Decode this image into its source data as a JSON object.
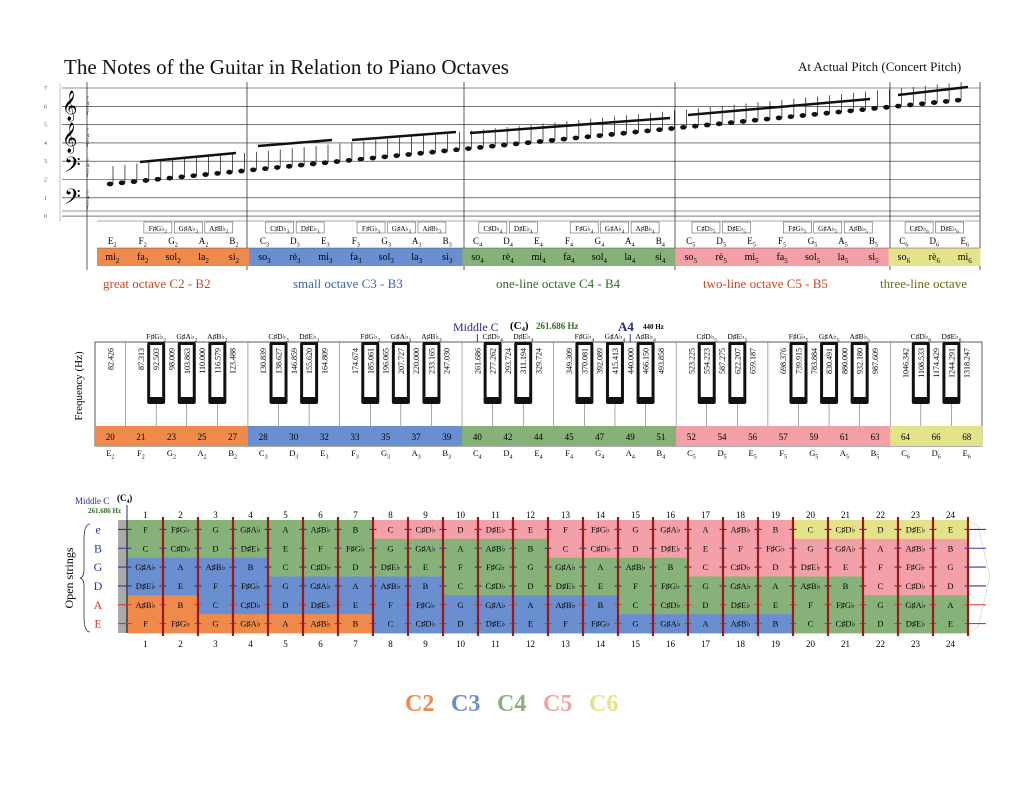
{
  "title": "The Notes of the Guitar in Relation to Piano Octaves",
  "subtitle": "At Actual Pitch (Concert Pitch)",
  "colors": {
    "C2": "#f08a4b",
    "C3": "#6a8fd1",
    "C4": "#86b27a",
    "C5": "#f4a0a8",
    "C6": "#e4e38a"
  },
  "staff": {
    "y_numbers": [
      "7",
      "6",
      "5",
      "4",
      "3",
      "2",
      "1",
      "0"
    ],
    "clef_fret_label": "FRET"
  },
  "top_table": {
    "sharps": [
      "F♯G♭2",
      "G♯A♭2",
      "A♯B♭2",
      "C♯D♭3",
      "D♯E♭3",
      "F♯G♭3",
      "G♯A♭3",
      "A♯B♭3",
      "C♯D♭4",
      "D♯E♭4",
      "F♯G♭4",
      "G♯A♭4",
      "A♯B♭4",
      "C♯D♭5",
      "D♯E♭5",
      "F♯G♭5",
      "G♯A♭5",
      "A♯B♭5",
      "C♯D♭6",
      "D♯E♭6"
    ],
    "naturals": [
      "E2",
      "F2",
      "G2",
      "A2",
      "B2",
      "C3",
      "D3",
      "E3",
      "F3",
      "G3",
      "A3",
      "B3",
      "C4",
      "D4",
      "E4",
      "F4",
      "G4",
      "A4",
      "B4",
      "C5",
      "D5",
      "E5",
      "F5",
      "G5",
      "A5",
      "B5",
      "C6",
      "D6",
      "E6"
    ],
    "solfege": [
      "mi2",
      "fa2",
      "sol2",
      "la2",
      "si2",
      "so3",
      "rè3",
      "mi3",
      "fa3",
      "sol3",
      "la3",
      "si3",
      "so4",
      "rè4",
      "mi4",
      "fa4",
      "sol4",
      "la4",
      "si4",
      "so5",
      "rè5",
      "mi5",
      "fa5",
      "sol5",
      "la5",
      "si5",
      "so6",
      "rè6",
      "mi6"
    ]
  },
  "octave_labels": [
    {
      "text": "great octave C2 - B2",
      "color": "#d0451b"
    },
    {
      "text": "small octave C3 - B3",
      "color": "#3a63b8"
    },
    {
      "text": "one-line octave C4 - B4",
      "color": "#2f6b22"
    },
    {
      "text": "two-line octave C5 - B5",
      "color": "#d0451b"
    },
    {
      "text": "three-line octave",
      "color": "#6b6b10"
    }
  ],
  "piano": {
    "middle_c_label": "Middle C",
    "middle_c_note": "(C₄)",
    "middle_c_freq": "261.686 Hz",
    "a4_label": "A4",
    "a4_freq": "440 Hz",
    "y_axis_label": "Frequency (Hz)",
    "white_freqs": [
      "82.426",
      "87.313",
      "98.009",
      "110.000",
      "123.488",
      "130.839",
      "146.859",
      "164.809",
      "174.674",
      "196.065",
      "220.000",
      "247.030",
      "261.686",
      "293.724",
      "329.724",
      "349.309",
      "392.089",
      "440.000",
      "493.858",
      "523.225",
      "587.275",
      "659.187",
      "698.376",
      "783.884",
      "880.000",
      "987.609",
      "1046.342",
      "1174.429",
      "1318.247"
    ],
    "black_freqs": [
      "92.503",
      "103.863",
      "116.579",
      "138.627",
      "155.620",
      "185.061",
      "207.727",
      "233.165",
      "277.262",
      "311.194",
      "370.081",
      "415.413",
      "466.150",
      "554.223",
      "622.207",
      "739.915",
      "830.491",
      "932.180",
      "1108.533",
      "1244.291"
    ],
    "black_labels": [
      "F♯G♭2",
      "G♯A♭2",
      "A♯B♭2",
      "C♯D♭3",
      "D♯E♭3",
      "F♯G♭3",
      "G♯A♭3",
      "A♯B♭3",
      "C♯D♭4",
      "D♯E♭4",
      "F♯G♭4",
      "G♯A♭4",
      "A♯B♭4",
      "C♯D♭5",
      "D♯E♭5",
      "F♯G♭5",
      "G♯A♭5",
      "A♯B♭5",
      "C♯D♭6",
      "D♯E♭6"
    ],
    "key_numbers": [
      "20",
      "21",
      "23",
      "25",
      "27",
      "28",
      "30",
      "32",
      "33",
      "35",
      "37",
      "39",
      "40",
      "42",
      "44",
      "45",
      "47",
      "49",
      "51",
      "52",
      "54",
      "56",
      "57",
      "59",
      "61",
      "63",
      "64",
      "66",
      "68"
    ],
    "bottom_notes": [
      "E2",
      "F2",
      "G2",
      "A2",
      "B2",
      "C3",
      "D3",
      "E3",
      "F3",
      "G3",
      "A3",
      "B3",
      "C4",
      "D4",
      "E4",
      "F4",
      "G4",
      "A4",
      "B4",
      "C5",
      "D5",
      "E5",
      "F5",
      "G5",
      "A5",
      "B5",
      "C6",
      "D6",
      "E6"
    ]
  },
  "fretboard": {
    "middle_c_label": "Middle C",
    "middle_c_note": "(C₄)",
    "middle_c_freq": "261.686 Hz",
    "open_strings_label": "Open strings",
    "strings": [
      {
        "name": "e",
        "color": "#2a3a9a"
      },
      {
        "name": "B",
        "color": "#2a3a9a"
      },
      {
        "name": "G",
        "color": "#2a3a9a"
      },
      {
        "name": "D",
        "color": "#2a3a9a"
      },
      {
        "name": "A",
        "color": "#e03030"
      },
      {
        "name": "E",
        "color": "#e03030"
      }
    ],
    "fret_numbers": [
      "1",
      "2",
      "3",
      "4",
      "5",
      "6",
      "7",
      "8",
      "9",
      "10",
      "11",
      "12",
      "13",
      "14",
      "15",
      "16",
      "17",
      "18",
      "19",
      "20",
      "21",
      "22",
      "23",
      "24"
    ],
    "rows": [
      [
        "F",
        "F♯G♭",
        "G",
        "G♯A♭",
        "A",
        "A♯B♭",
        "B",
        "C",
        "C♯D♭",
        "D",
        "D♯E♭",
        "E",
        "F",
        "F♯G♭",
        "G",
        "G♯A♭",
        "A",
        "A♯B♭",
        "B",
        "C",
        "C♯D♭",
        "D",
        "D♯E♭",
        "E"
      ],
      [
        "C",
        "C♯D♭",
        "D",
        "D♯E♭",
        "E",
        "F",
        "F♯G♭",
        "G",
        "G♯A♭",
        "A",
        "A♯B♭",
        "B",
        "C",
        "C♯D♭",
        "D",
        "D♯E♭",
        "E",
        "F",
        "F♯G♭",
        "G",
        "G♯A♭",
        "A",
        "A♯B♭",
        "B"
      ],
      [
        "G♯A♭",
        "A",
        "A♯B♭",
        "B",
        "C",
        "C♯D♭",
        "D",
        "D♯E♭",
        "E",
        "F",
        "F♯G♭",
        "G",
        "G♯A♭",
        "A",
        "A♯B♭",
        "B",
        "C",
        "C♯D♭",
        "D",
        "D♯E♭",
        "E",
        "F",
        "F♯G♭",
        "G"
      ],
      [
        "D♯E♭",
        "E",
        "F",
        "F♯G♭",
        "G",
        "G♯A♭",
        "A",
        "A♯B♭",
        "B",
        "C",
        "C♯D♭",
        "D",
        "D♯E♭",
        "E",
        "F",
        "F♯G♭",
        "G",
        "G♯A♭",
        "A",
        "A♯B♭",
        "B",
        "C",
        "C♯D♭",
        "D"
      ],
      [
        "A♯B♭",
        "B",
        "C",
        "C♯D♭",
        "D",
        "D♯E♭",
        "E",
        "F",
        "F♯G♭",
        "G",
        "G♯A♭",
        "A",
        "A♯B♭",
        "B",
        "C",
        "C♯D♭",
        "D",
        "D♯E♭",
        "E",
        "F",
        "F♯G♭",
        "G",
        "G♯A♭",
        "A"
      ],
      [
        "F",
        "F♯G♭",
        "G",
        "G♯A♭",
        "A",
        "A♯B♭",
        "B",
        "C",
        "C♯D♭",
        "D",
        "D♯E♭",
        "E",
        "F",
        "F♯G♭",
        "G",
        "G♯A♭",
        "A",
        "A♯B♭",
        "B",
        "C",
        "C♯D♭",
        "D",
        "D♯E♭",
        "E"
      ]
    ],
    "row_octaves": [
      [
        "4",
        "4",
        "4",
        "4",
        "4",
        "4",
        "4",
        "5",
        "5",
        "5",
        "5",
        "5",
        "5",
        "5",
        "5",
        "5",
        "5",
        "5",
        "5",
        "6",
        "6",
        "6",
        "6",
        "6"
      ],
      [
        "4",
        "4",
        "4",
        "4",
        "4",
        "4",
        "4",
        "4",
        "4",
        "4",
        "4",
        "4",
        "5",
        "5",
        "5",
        "5",
        "5",
        "5",
        "5",
        "5",
        "5",
        "5",
        "5",
        "5"
      ],
      [
        "3",
        "3",
        "3",
        "3",
        "4",
        "4",
        "4",
        "4",
        "4",
        "4",
        "4",
        "4",
        "4",
        "4",
        "4",
        "4",
        "5",
        "5",
        "5",
        "5",
        "5",
        "5",
        "5",
        "5"
      ],
      [
        "3",
        "3",
        "3",
        "3",
        "3",
        "3",
        "3",
        "3",
        "3",
        "4",
        "4",
        "4",
        "4",
        "4",
        "4",
        "4",
        "4",
        "4",
        "4",
        "4",
        "4",
        "5",
        "5",
        "5"
      ],
      [
        "2",
        "2",
        "3",
        "3",
        "3",
        "3",
        "3",
        "3",
        "3",
        "3",
        "3",
        "3",
        "3",
        "3",
        "4",
        "4",
        "4",
        "4",
        "4",
        "4",
        "4",
        "4",
        "4",
        "4"
      ],
      [
        "2",
        "2",
        "2",
        "2",
        "2",
        "2",
        "2",
        "3",
        "3",
        "3",
        "3",
        "3",
        "3",
        "3",
        "3",
        "3",
        "3",
        "3",
        "3",
        "4",
        "4",
        "4",
        "4",
        "4"
      ]
    ]
  },
  "legend": [
    {
      "text": "C2",
      "color": "#f08a4b"
    },
    {
      "text": "C3",
      "color": "#6a8fd1"
    },
    {
      "text": "C4",
      "color": "#86b27a"
    },
    {
      "text": "C5",
      "color": "#f4a0a8"
    },
    {
      "text": "C6",
      "color": "#e4e38a"
    }
  ]
}
